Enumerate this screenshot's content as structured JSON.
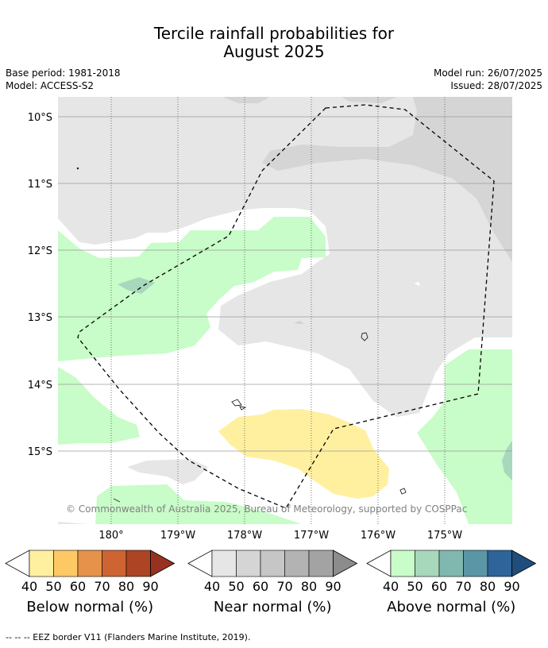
{
  "title": {
    "line1": "Tercile rainfall probabilities for",
    "line2": "August 2025"
  },
  "meta": {
    "base_period": "Base period: 1981-2018",
    "model": "Model: ACCESS-S2",
    "model_run": "Model run: 26/07/2025",
    "issued": "Issued: 28/07/2025"
  },
  "map": {
    "lat_labels": [
      "10°S",
      "11°S",
      "12°S",
      "13°S",
      "14°S",
      "15°S"
    ],
    "lon_labels": [
      "180°",
      "179°W",
      "178°W",
      "177°W",
      "176°W",
      "175°W"
    ],
    "copyright": "© Commonwealth of Australia 2025, Bureau of Meteorology, supported by COSPPac",
    "colors": {
      "near_normal_40": "#e6e6e6",
      "near_normal_50": "#d5d5d5",
      "above_normal_40": "#c8fcc8",
      "above_normal_50": "#a8d8bc",
      "below_normal_40": "#fff0a0"
    }
  },
  "colorbars": [
    {
      "title": "Below normal (%)",
      "ticks": [
        "40",
        "50",
        "60",
        "70",
        "80",
        "90"
      ],
      "colors": [
        "#fff0a0",
        "#fec965",
        "#e6924a",
        "#cf6433",
        "#ad4424",
        "#973220"
      ]
    },
    {
      "title": "Near normal (%)",
      "ticks": [
        "40",
        "50",
        "60",
        "70",
        "80",
        "90"
      ],
      "colors": [
        "#e6e6e6",
        "#d5d5d5",
        "#c6c6c6",
        "#b3b3b3",
        "#a3a3a3",
        "#8c8c8c"
      ]
    },
    {
      "title": "Above normal (%)",
      "ticks": [
        "40",
        "50",
        "60",
        "70",
        "80",
        "90"
      ],
      "colors": [
        "#c8fcc8",
        "#a8d8bc",
        "#80b8b0",
        "#5a96a6",
        "#2e6499",
        "#1f4e7d"
      ]
    }
  ],
  "footnote": "--  --  -- EEZ border V11 (Flanders Marine Institute, 2019)."
}
